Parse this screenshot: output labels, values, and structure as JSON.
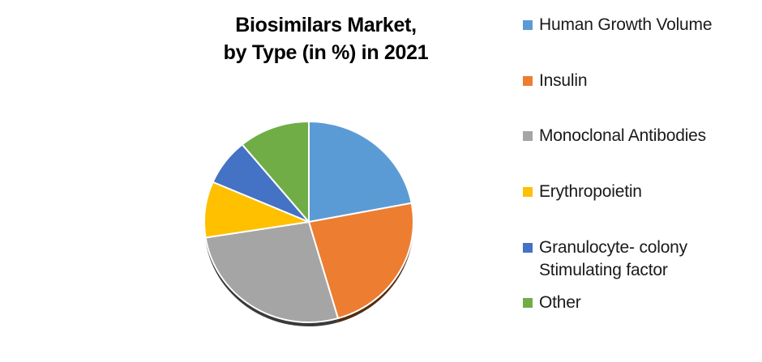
{
  "chart": {
    "title_line1": "Biosimilars Market,",
    "title_line2": "by Type (in %) in 2021"
  },
  "legend": {
    "items": [
      {
        "label": "Human Growth Volume",
        "color": "#5B9BD5"
      },
      {
        "label": "Insulin",
        "color": "#ED7D31"
      },
      {
        "label": "Monoclonal Antibodies",
        "color": "#A5A5A5"
      },
      {
        "label": "Erythropoietin",
        "color": "#FFC000"
      },
      {
        "label": "Granulocyte- colony Stimulating factor",
        "label_line1": "Granulocyte- colony",
        "label_line2": "Stimulating factor",
        "color": "#4472C4"
      },
      {
        "label": "Other",
        "color": "#70AD47"
      }
    ]
  },
  "chart_data": {
    "type": "pie",
    "title": "Biosimilars Market, by Type (in %) in 2021",
    "categories": [
      "Human Growth Volume",
      "Insulin",
      "Monoclonal Antibodies",
      "Erythropoietin",
      "Granulocyte- colony Stimulating factor",
      "Other"
    ],
    "values": [
      22,
      23.5,
      27,
      9,
      7.5,
      11
    ],
    "unit": "%",
    "colors": [
      "#5B9BD5",
      "#ED7D31",
      "#A5A5A5",
      "#FFC000",
      "#4472C4",
      "#70AD47"
    ],
    "start_angle_deg": 0,
    "direction": "clockwise",
    "legend_position": "right",
    "data_labels": false
  }
}
